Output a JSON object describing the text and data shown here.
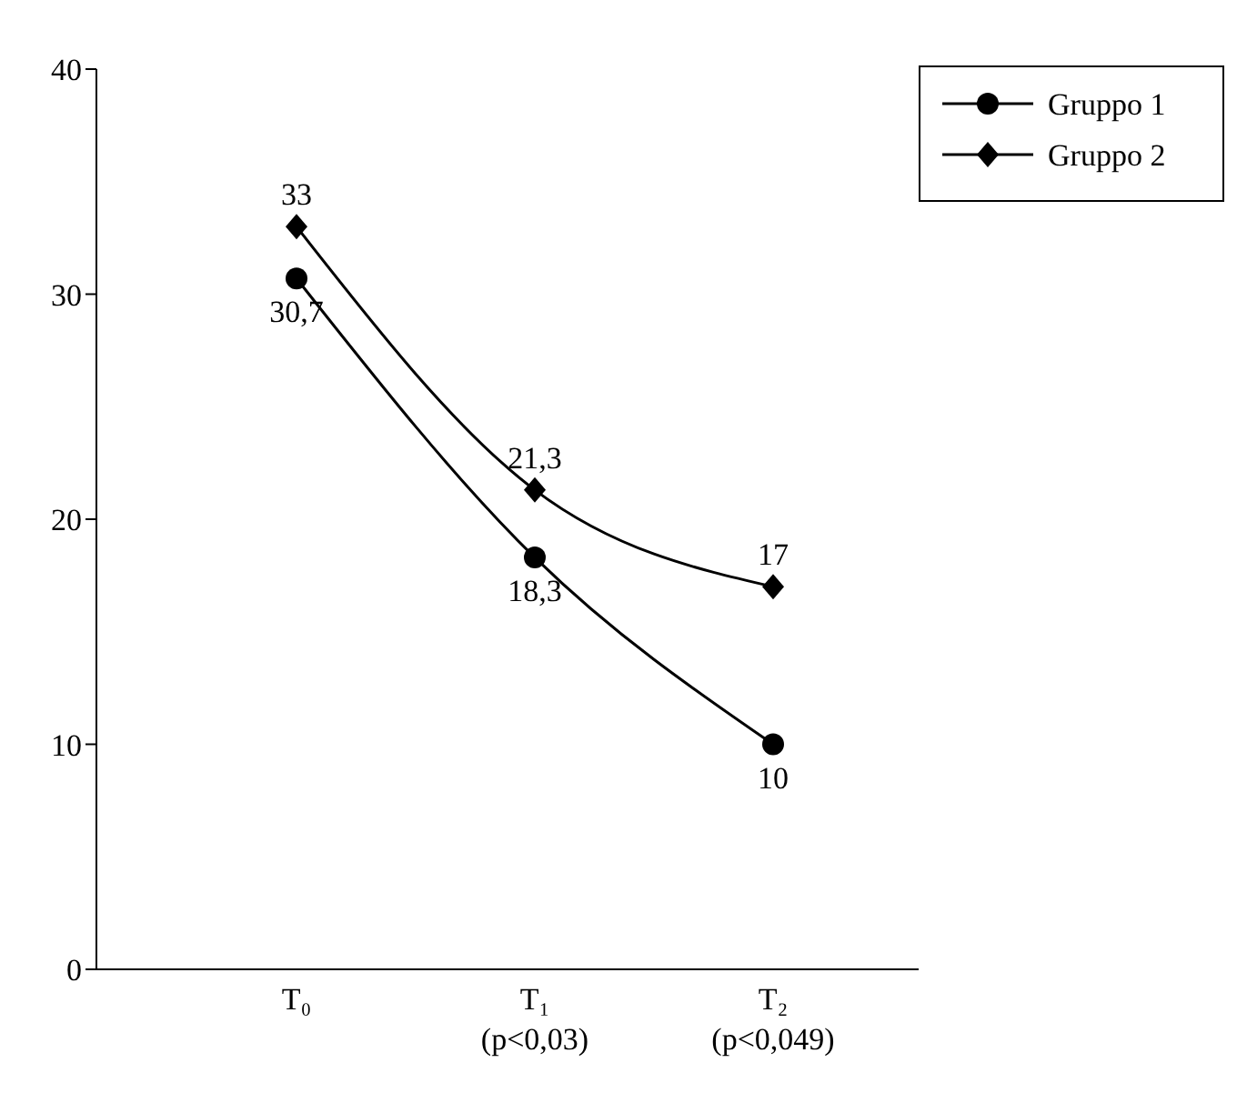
{
  "chart_data": {
    "type": "line",
    "categories": [
      "T₀",
      "T₁\n(p<0,03)",
      "T₂\n(p<0,049)"
    ],
    "series": [
      {
        "name": "Gruppo 1",
        "color": "#000000",
        "values": [
          30.7,
          18.3,
          10
        ],
        "value_labels": [
          "30,7",
          "18,3",
          "10"
        ],
        "marker": "circle"
      },
      {
        "name": "Gruppo 2",
        "color": "#000000",
        "values": [
          33,
          21.3,
          17
        ],
        "value_labels": [
          "33",
          "21,3",
          "17"
        ],
        "marker": "diamond"
      }
    ],
    "ylim": [
      0,
      40
    ],
    "yticks": [
      0,
      10,
      20,
      30,
      40
    ],
    "legend": "top right",
    "grid": false
  }
}
